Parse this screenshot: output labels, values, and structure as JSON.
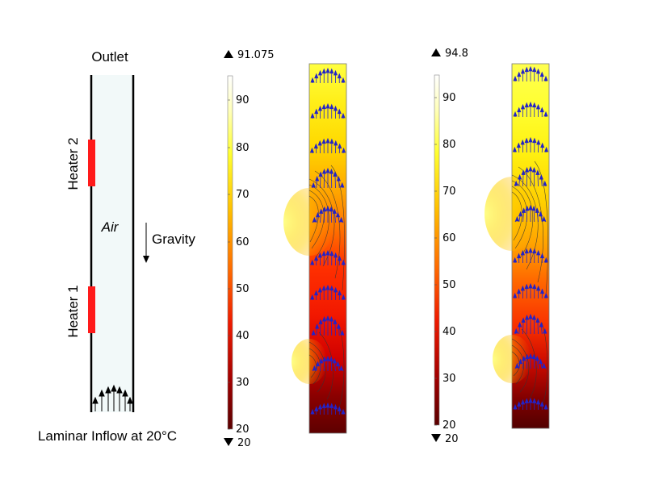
{
  "schematic": {
    "outlet_label": "Outlet",
    "heater_top_label": "Heater 2",
    "heater_bottom_label": "Heater 1",
    "medium_label": "Air",
    "gravity_label": "Gravity",
    "inflow_label": "Laminar Inflow at 20°C",
    "heater_color": "#ff1a1a",
    "channel_fill": "#f2f9f9"
  },
  "colorbars": [
    {
      "max_label": "91.075",
      "min_label": "20",
      "ticks": [
        "90",
        "80",
        "70",
        "60",
        "50",
        "40",
        "30",
        "20"
      ]
    },
    {
      "max_label": "94.8",
      "min_label": "20",
      "ticks": [
        "90",
        "80",
        "70",
        "60",
        "50",
        "40",
        "30",
        "20"
      ]
    }
  ],
  "colors": {
    "arrow_color": "#2323c8",
    "contour_color": "#333333",
    "hot": "#ffffb0",
    "cold": "#5a0000"
  }
}
